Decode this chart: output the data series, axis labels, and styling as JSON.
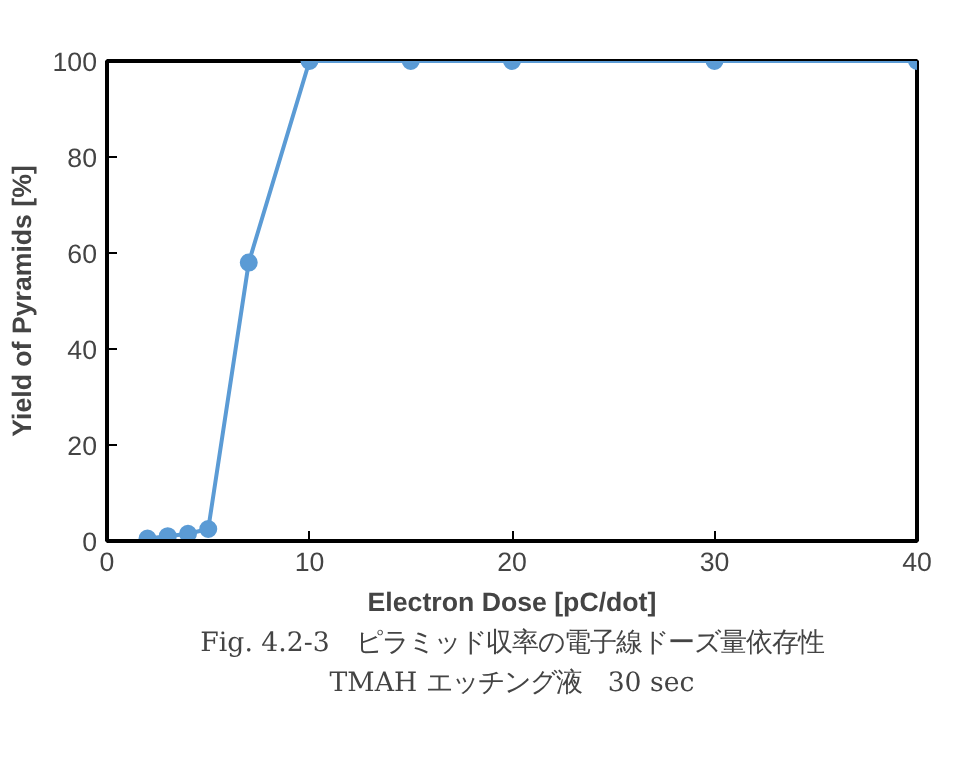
{
  "chart_data": {
    "type": "line",
    "xlabel": "Electron Dose [pC/dot]",
    "ylabel": "Yield of Pyramids [%]",
    "x": [
      2,
      3,
      4,
      5,
      7,
      10,
      15,
      20,
      30,
      40
    ],
    "series": [
      {
        "color": "#5b9bd5",
        "values": [
          0.5,
          1,
          1.5,
          2.5,
          58,
          100,
          100,
          100,
          100,
          100
        ]
      }
    ],
    "xlim": [
      0,
      40
    ],
    "xticks": [
      0,
      10,
      20,
      30,
      40
    ],
    "ylim": [
      0,
      100
    ],
    "yticks": [
      0,
      20,
      40,
      60,
      80,
      100
    ],
    "marker": "circle",
    "grid": false,
    "annotations": [
      "Fig. 4.2-3　ピラミッド収率の電子線ドーズ量依存性",
      "TMAH エッチング液　30 sec"
    ]
  }
}
